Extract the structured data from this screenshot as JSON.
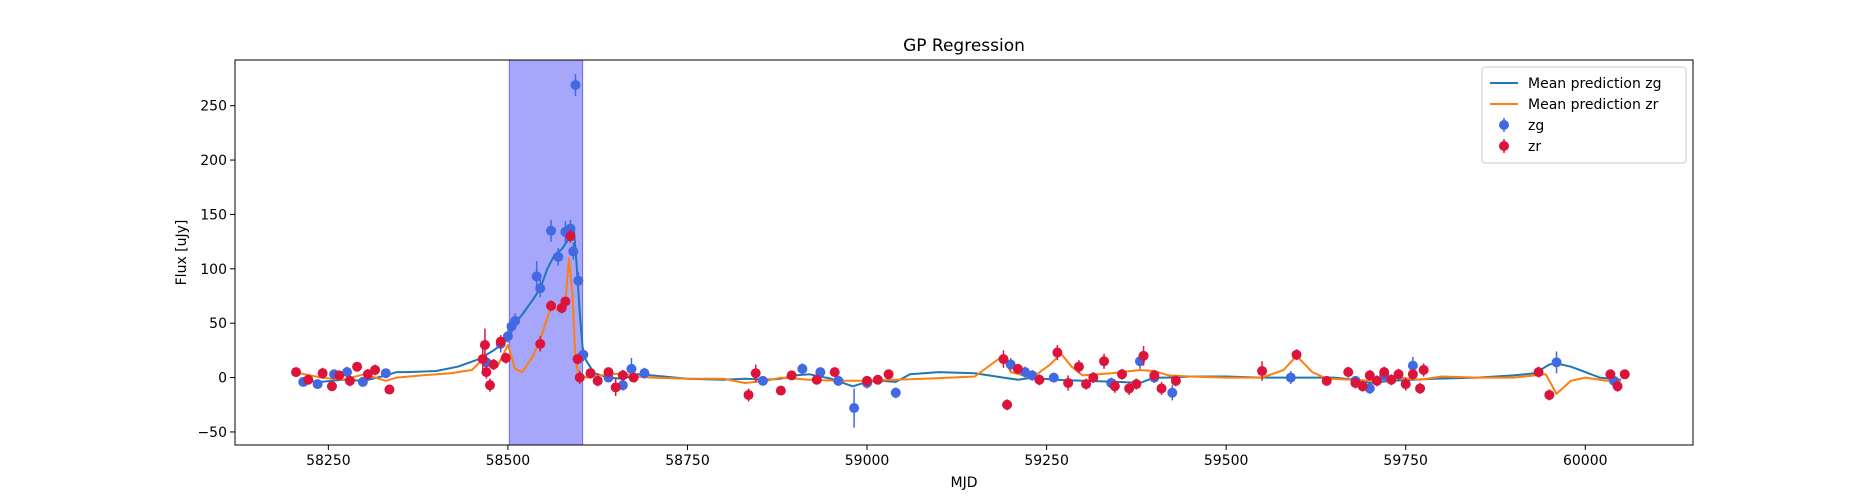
{
  "chart_data": {
    "type": "scatter",
    "title": "GP Regression",
    "xlabel": "MJD",
    "ylabel": "Flux [uJy]",
    "xlim": [
      58120,
      60150
    ],
    "ylim": [
      -62,
      292
    ],
    "x_ticks": [
      58250,
      58500,
      58750,
      59000,
      59250,
      59500,
      59750,
      60000
    ],
    "y_ticks": [
      -50,
      0,
      50,
      100,
      150,
      200,
      250
    ],
    "grid": false,
    "legend_position": "top-right",
    "shaded_region": {
      "x_start": 58502,
      "x_end": 58604,
      "color": "#a6a6fb"
    },
    "colors": {
      "zg_points": "#4169e1",
      "zr_points": "#dc143c",
      "zg_line": "#1f77b4",
      "zr_line": "#ff7f0e"
    },
    "legend": [
      {
        "label": "Mean prediction zg",
        "kind": "line",
        "color": "#1f77b4"
      },
      {
        "label": "Mean prediction zr",
        "kind": "line",
        "color": "#ff7f0e"
      },
      {
        "label": "zg",
        "kind": "errorbar",
        "color": "#4169e1"
      },
      {
        "label": "zr",
        "kind": "errorbar",
        "color": "#dc143c"
      }
    ],
    "series": [
      {
        "name": "Mean prediction zg",
        "kind": "line",
        "x": [
          58210,
          58240,
          58270,
          58300,
          58330,
          58345,
          58360,
          58400,
          58430,
          58460,
          58480,
          58500,
          58510,
          58520,
          58535,
          58545,
          58555,
          58565,
          58575,
          58585,
          58592,
          58596,
          58600,
          58605,
          58620,
          58640,
          58660,
          58680,
          58700,
          58750,
          58800,
          58830,
          58860,
          58880,
          58900,
          58920,
          58950,
          58980,
          59000,
          59020,
          59040,
          59060,
          59100,
          59150,
          59190,
          59210,
          59230,
          59260,
          59300,
          59350,
          59380,
          59400,
          59420,
          59450,
          59500,
          59550,
          59600,
          59650,
          59680,
          59700,
          59730,
          59760,
          59790,
          59850,
          59900,
          59930,
          59950,
          59960,
          59980,
          60000,
          60020,
          60050
        ],
        "y": [
          -3,
          -4,
          -2,
          -3,
          2,
          5,
          5,
          6,
          10,
          17,
          25,
          35,
          50,
          58,
          72,
          82,
          100,
          113,
          118,
          128,
          135,
          100,
          60,
          20,
          4,
          0,
          -1,
          3,
          2,
          -1,
          -2,
          -1,
          -2,
          -1,
          2,
          3,
          -1,
          -8,
          -4,
          -3,
          -4,
          3,
          5,
          4,
          0,
          -2,
          0,
          -2,
          -3,
          -4,
          -5,
          0,
          0,
          1,
          1,
          0,
          0,
          0,
          -2,
          -5,
          -3,
          -2,
          -1,
          0,
          2,
          4,
          12,
          13,
          10,
          5,
          0,
          -2
        ]
      },
      {
        "name": "Mean prediction zr",
        "kind": "line",
        "x": [
          58210,
          58240,
          58270,
          58300,
          58330,
          58345,
          58380,
          58420,
          58450,
          58465,
          58475,
          58485,
          58500,
          58510,
          58520,
          58535,
          58545,
          58560,
          58570,
          58580,
          58585,
          58590,
          58594,
          58598,
          58602,
          58610,
          58630,
          58660,
          58680,
          58700,
          58750,
          58800,
          58830,
          58860,
          58880,
          58920,
          58960,
          59000,
          59040,
          59080,
          59150,
          59185,
          59190,
          59200,
          59230,
          59255,
          59270,
          59285,
          59300,
          59340,
          59380,
          59400,
          59420,
          59450,
          59500,
          59550,
          59580,
          59598,
          59620,
          59640,
          59680,
          59700,
          59740,
          59770,
          59800,
          59850,
          59900,
          59930,
          59945,
          59960,
          59980,
          60000,
          60030,
          60050
        ],
        "y": [
          4,
          0,
          -2,
          3,
          -3,
          0,
          2,
          4,
          7,
          17,
          11,
          10,
          30,
          8,
          5,
          20,
          35,
          65,
          62,
          70,
          110,
          75,
          15,
          5,
          2,
          0,
          2,
          4,
          1,
          0,
          -1,
          -1,
          -5,
          -3,
          0,
          -2,
          -3,
          -3,
          -2,
          -1,
          1,
          18,
          19,
          5,
          0,
          12,
          22,
          10,
          2,
          4,
          7,
          6,
          2,
          1,
          0,
          0,
          7,
          20,
          5,
          -1,
          -2,
          -3,
          0,
          -2,
          1,
          0,
          0,
          2,
          3,
          -15,
          -3,
          0,
          -3,
          -3
        ]
      },
      {
        "name": "zg",
        "kind": "errorbar",
        "x": [
          58215,
          58235,
          58258,
          58276,
          58298,
          58330,
          58470,
          58490,
          58500,
          58505,
          58510,
          58540,
          58545,
          58560,
          58570,
          58580,
          58587,
          58591,
          58594,
          58598,
          58605,
          58615,
          58640,
          58660,
          58672,
          58690,
          58855,
          58910,
          58935,
          58960,
          58982,
          59000,
          59040,
          59200,
          59220,
          59230,
          59260,
          59340,
          59380,
          59400,
          59425,
          59590,
          59680,
          59700,
          59720,
          59760,
          59960,
          60040
        ],
        "y": [
          -4,
          -6,
          3,
          5,
          -4,
          4,
          14,
          31,
          38,
          47,
          52,
          93,
          82,
          135,
          111,
          134,
          137,
          116,
          269,
          89,
          21,
          4,
          0,
          -7,
          8,
          4,
          -3,
          8,
          5,
          -3,
          -28,
          -5,
          -14,
          12,
          5,
          2,
          0,
          -5,
          15,
          0,
          -14,
          0,
          -3,
          -10,
          2,
          11,
          14,
          -3
        ],
        "err": [
          4,
          4,
          4,
          5,
          4,
          4,
          6,
          8,
          6,
          6,
          7,
          14,
          8,
          10,
          8,
          10,
          8,
          8,
          10,
          8,
          6,
          4,
          4,
          5,
          10,
          5,
          4,
          5,
          4,
          4,
          18,
          5,
          5,
          6,
          5,
          5,
          4,
          5,
          7,
          5,
          7,
          6,
          4,
          5,
          4,
          8,
          10,
          4
        ]
      },
      {
        "name": "zr",
        "kind": "errorbar",
        "x": [
          58205,
          58222,
          58242,
          58255,
          58265,
          58280,
          58290,
          58305,
          58315,
          58335,
          58465,
          58468,
          58470,
          58475,
          58480,
          58490,
          58497,
          58545,
          58560,
          58575,
          58580,
          58587,
          58597,
          58600,
          58615,
          58625,
          58640,
          58650,
          58660,
          58675,
          58835,
          58845,
          58880,
          58895,
          58930,
          58955,
          59000,
          59015,
          59030,
          59190,
          59195,
          59210,
          59240,
          59265,
          59280,
          59295,
          59305,
          59315,
          59330,
          59345,
          59355,
          59365,
          59375,
          59385,
          59400,
          59410,
          59430,
          59550,
          59598,
          59640,
          59670,
          59680,
          59690,
          59700,
          59710,
          59720,
          59730,
          59740,
          59750,
          59760,
          59770,
          59775,
          59935,
          59950,
          60035,
          60045,
          60055
        ],
        "y": [
          5,
          -2,
          4,
          -8,
          2,
          -3,
          10,
          3,
          7,
          -11,
          17,
          30,
          5,
          -7,
          12,
          33,
          18,
          31,
          66,
          64,
          70,
          130,
          17,
          0,
          4,
          -3,
          5,
          -9,
          2,
          0,
          -16,
          4,
          -12,
          2,
          -2,
          5,
          -3,
          -2,
          3,
          17,
          -25,
          8,
          -2,
          23,
          -5,
          10,
          -6,
          0,
          15,
          -8,
          3,
          -10,
          -6,
          20,
          2,
          -10,
          -3,
          6,
          21,
          -3,
          5,
          -5,
          -8,
          2,
          -3,
          5,
          -2,
          3,
          -6,
          3,
          -10,
          7,
          5,
          -16,
          3,
          -8,
          3
        ],
        "err": [
          3,
          4,
          5,
          4,
          4,
          5,
          4,
          5,
          5,
          4,
          10,
          15,
          6,
          6,
          5,
          6,
          5,
          7,
          5,
          5,
          4,
          6,
          5,
          6,
          5,
          5,
          4,
          8,
          5,
          4,
          6,
          8,
          4,
          4,
          3,
          4,
          4,
          4,
          4,
          8,
          5,
          4,
          5,
          7,
          7,
          6,
          5,
          5,
          7,
          6,
          5,
          6,
          5,
          9,
          5,
          6,
          5,
          9,
          5,
          3,
          5,
          5,
          5,
          5,
          5,
          5,
          5,
          5,
          6,
          5,
          5,
          6,
          5,
          5,
          4,
          5,
          4
        ]
      }
    ]
  }
}
